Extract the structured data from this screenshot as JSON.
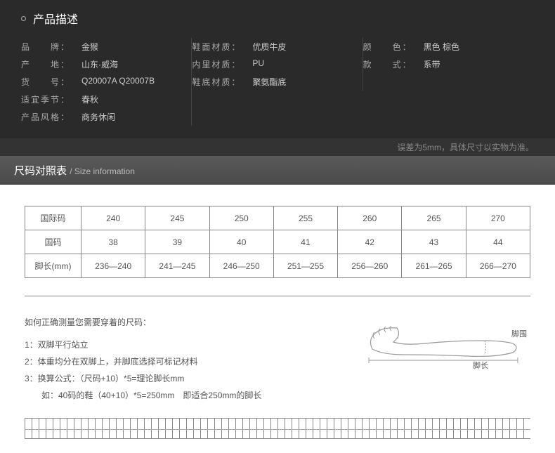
{
  "header": {
    "title": "产品描述"
  },
  "specs": {
    "col1": [
      {
        "label": "品　　牌：",
        "value": "金猴"
      },
      {
        "label": "产　　地：",
        "value": "山东·威海"
      },
      {
        "label": "货　　号：",
        "value": "Q20007A Q20007B"
      },
      {
        "label": "适宜季节：",
        "value": "春秋"
      },
      {
        "label": "产品风格：",
        "value": "商务休闲"
      }
    ],
    "col2": [
      {
        "label": "鞋面材质：",
        "value": "优质牛皮"
      },
      {
        "label": "内里材质：",
        "value": "PU"
      },
      {
        "label": "鞋底材质：",
        "value": "聚氨酯底"
      }
    ],
    "col3": [
      {
        "label": "颜　　色：",
        "value": "黑色 棕色"
      },
      {
        "label": "款　　式：",
        "value": "系带"
      }
    ]
  },
  "footnote": "误差为5mm，具体尺寸以实物为准。",
  "sizeHeader": {
    "cn": "尺码对照表",
    "en": "/ Size information"
  },
  "sizeTable": {
    "rows": [
      {
        "label": "国际码",
        "cells": [
          "240",
          "245",
          "250",
          "255",
          "260",
          "265",
          "270"
        ]
      },
      {
        "label": "国码",
        "cells": [
          "38",
          "39",
          "40",
          "41",
          "42",
          "43",
          "44"
        ]
      },
      {
        "label": "脚长(mm)",
        "cells": [
          "236—240",
          "241—245",
          "246—250",
          "251—255",
          "256—260",
          "261—265",
          "266—270"
        ]
      }
    ]
  },
  "instructions": {
    "title": "如何正确测量您需要穿着的尺码：",
    "lines": [
      "1：双脚平行站立",
      "2：体重均分在双脚上，并脚底选择可标记材料",
      "3：换算公式：（尺码+10）*5=理论脚长mm",
      "　　如：40码的鞋（40+10）*5=250mm　即适合250mm的脚长"
    ]
  },
  "footLabels": {
    "wei": "脚围",
    "chang": "脚长"
  },
  "colors": {
    "footStroke": "#999999",
    "footFill": "#ffffff"
  }
}
